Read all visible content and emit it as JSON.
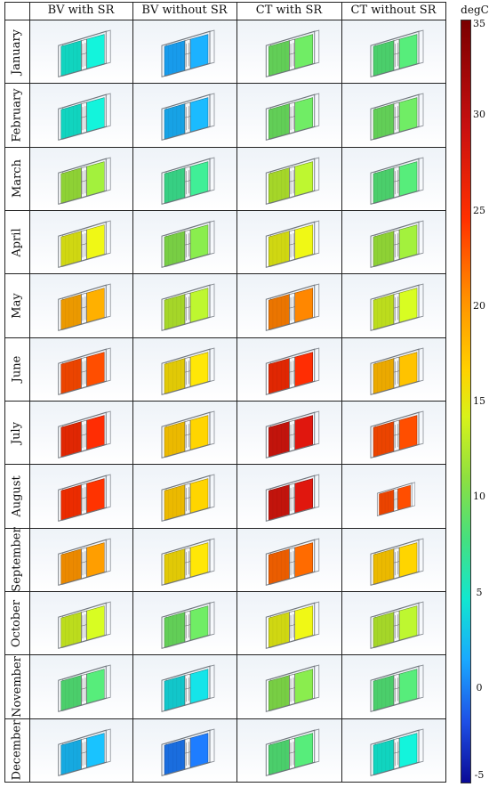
{
  "columns": [
    "BV with SR",
    "BV without SR",
    "CT with SR",
    "CT without SR"
  ],
  "rows": [
    {
      "month": "January",
      "cells": [
        6,
        2,
        10,
        9
      ]
    },
    {
      "month": "February",
      "cells": [
        6,
        2.5,
        10,
        10
      ]
    },
    {
      "month": "March",
      "cells": [
        12,
        8,
        13,
        9
      ]
    },
    {
      "month": "April",
      "cells": [
        15,
        11,
        15,
        12
      ]
    },
    {
      "month": "May",
      "cells": [
        19,
        13,
        21,
        14
      ]
    },
    {
      "month": "June",
      "cells": [
        23,
        16,
        25,
        18
      ]
    },
    {
      "month": "July",
      "cells": [
        25,
        17,
        28,
        23
      ]
    },
    {
      "month": "August",
      "cells": [
        24,
        17,
        28,
        23
      ]
    },
    {
      "month": "September",
      "cells": [
        20,
        16,
        22,
        17
      ]
    },
    {
      "month": "October",
      "cells": [
        14,
        10,
        15,
        13
      ]
    },
    {
      "month": "November",
      "cells": [
        9,
        5,
        11,
        9
      ]
    },
    {
      "month": "December",
      "cells": [
        3,
        0,
        9,
        6
      ]
    }
  ],
  "colorbar": {
    "unit": "degC",
    "ticks": [
      35,
      30,
      25,
      20,
      15,
      10,
      5,
      0,
      -5
    ],
    "min": -5,
    "max": 35
  }
}
